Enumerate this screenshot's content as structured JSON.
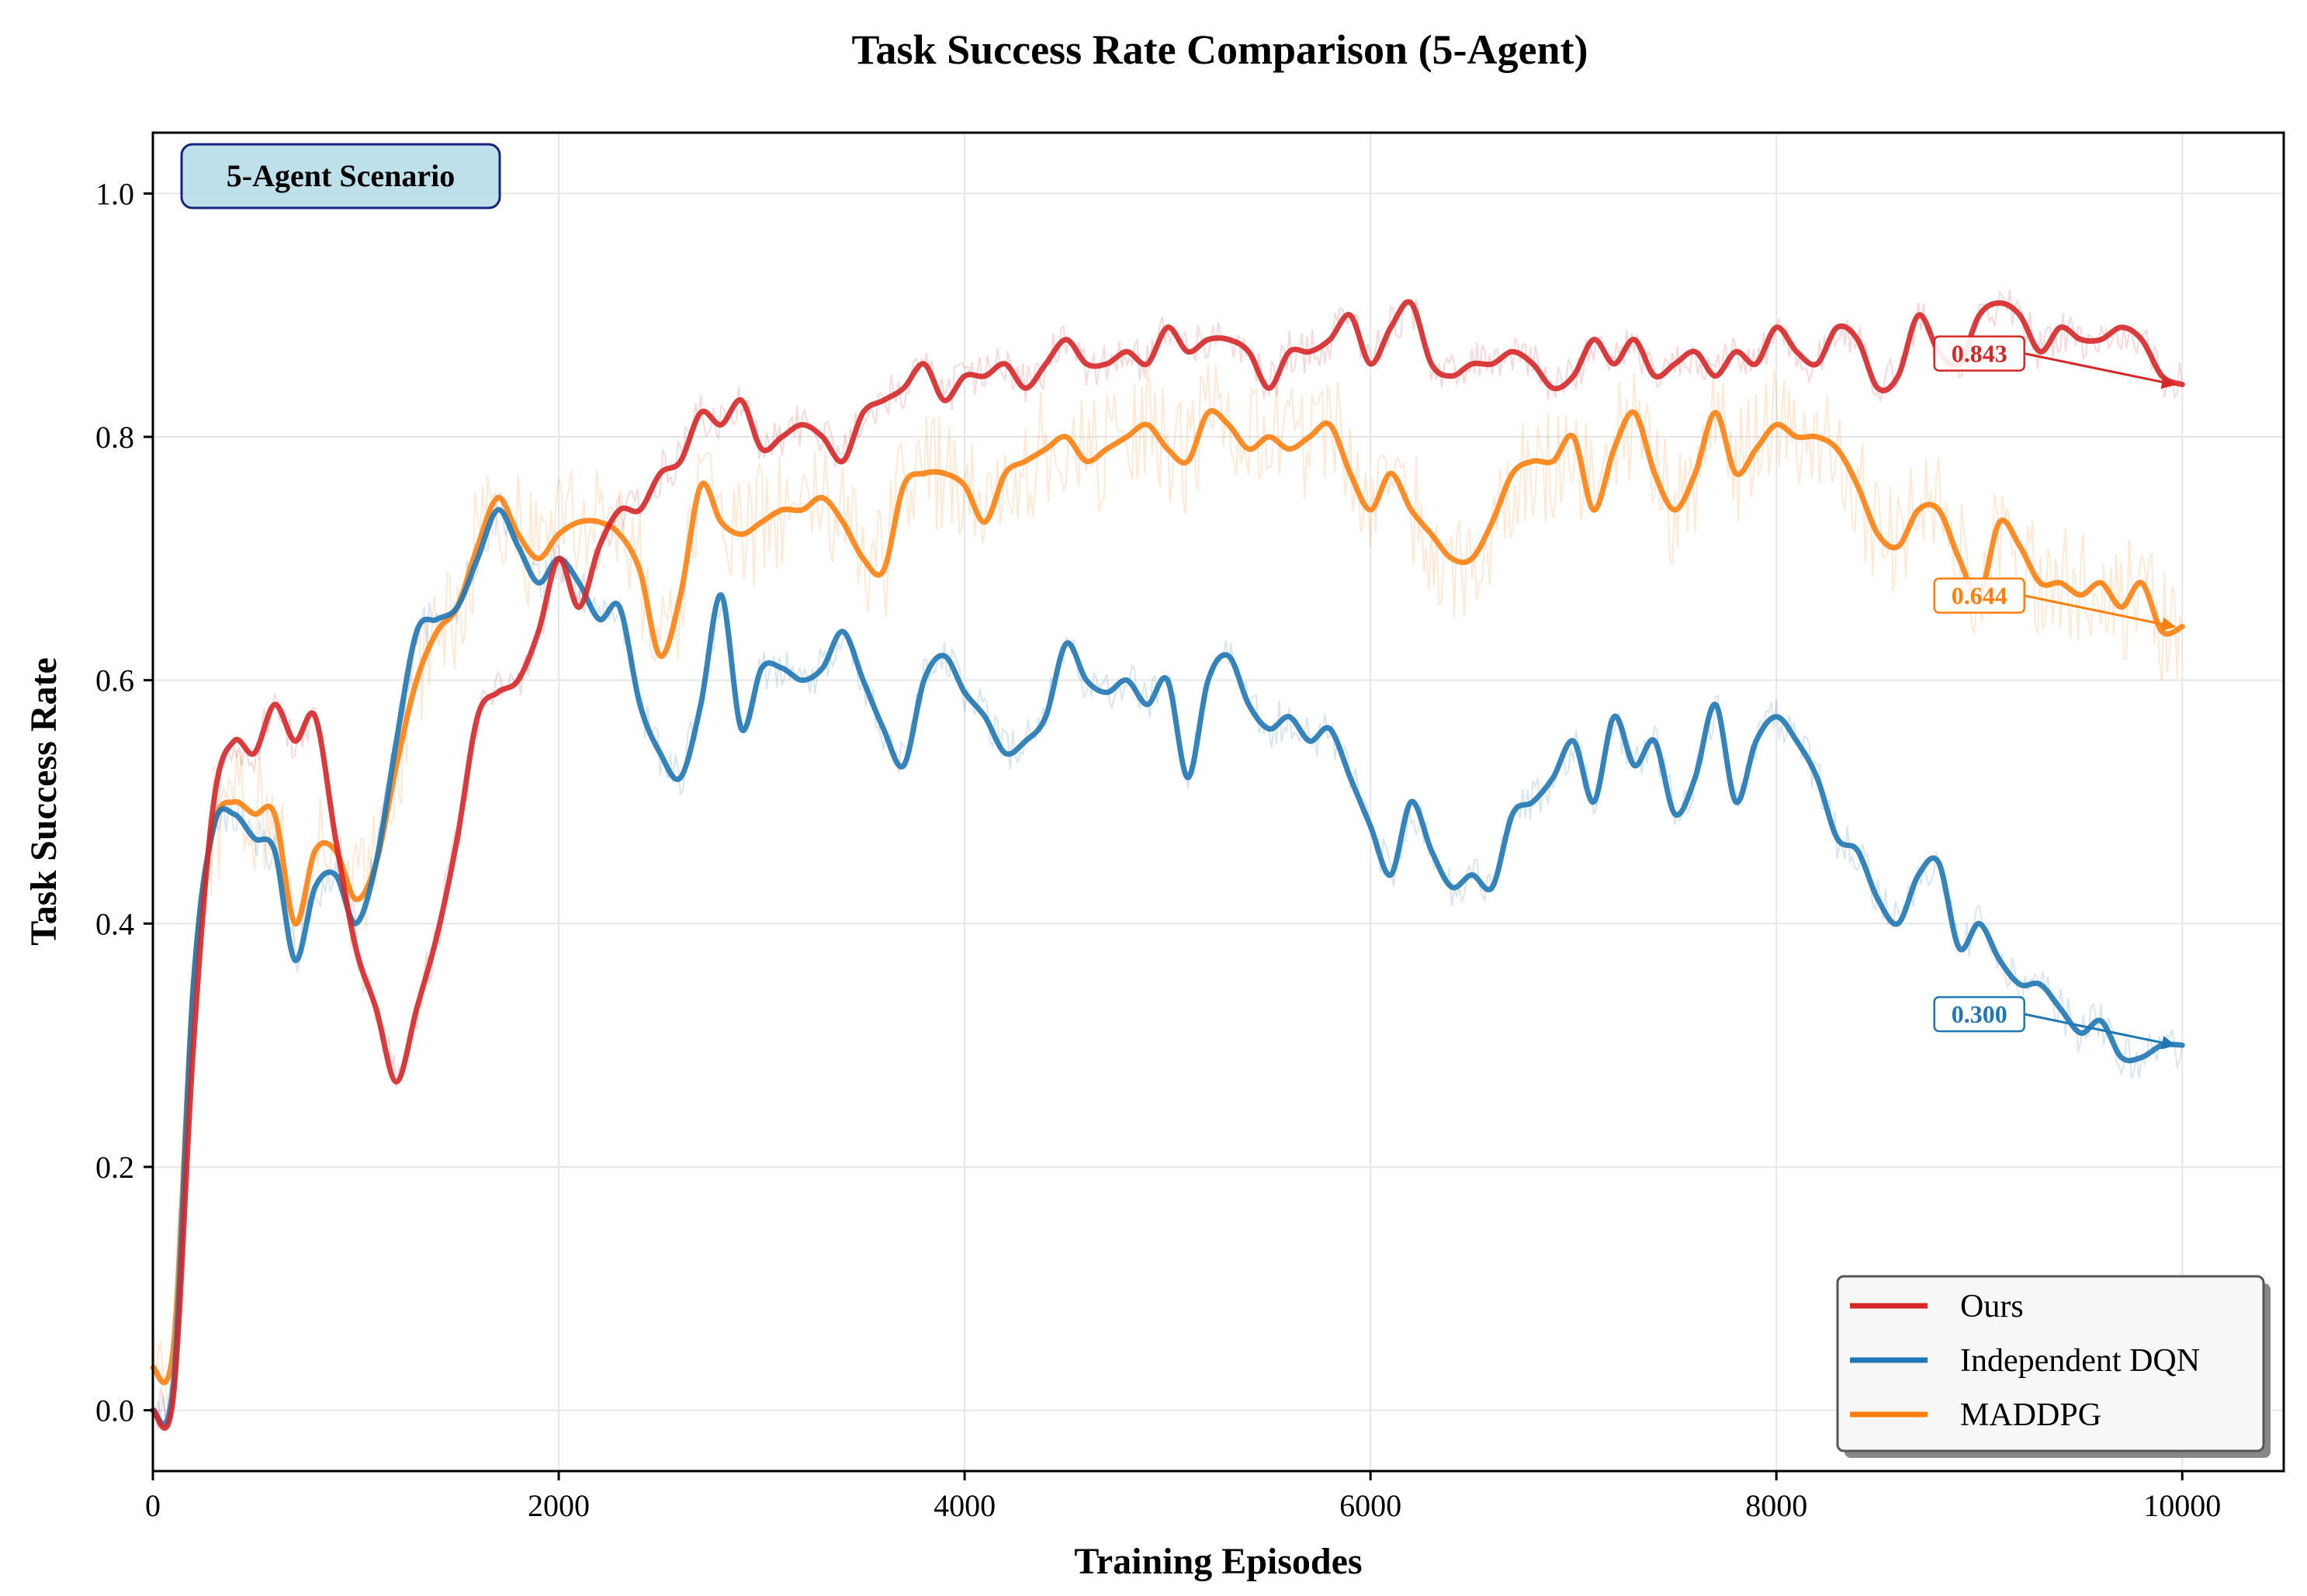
{
  "chart_data": {
    "type": "line",
    "title": "Task Success Rate Comparison (5-Agent)",
    "xlabel": "Training Episodes",
    "ylabel": "Task Success Rate",
    "xlim": [
      0,
      10500
    ],
    "ylim": [
      -0.05,
      1.05
    ],
    "xticks": [
      0,
      2000,
      4000,
      6000,
      8000,
      10000
    ],
    "xtick_labels": [
      "0",
      "2000",
      "4000",
      "6000",
      "8000",
      "10000"
    ],
    "yticks": [
      0.0,
      0.2,
      0.4,
      0.6,
      0.8,
      1.0
    ],
    "ytick_labels": [
      "0.0",
      "0.2",
      "0.4",
      "0.6",
      "0.8",
      "1.0"
    ],
    "grid": true,
    "annotation_box": "5-Agent Scenario",
    "legend_location": "lower-right",
    "series": [
      {
        "name": "Ours",
        "color": "#d62728",
        "final_label": "0.843",
        "final_value": 0.843,
        "x": [
          0,
          100,
          200,
          300,
          400,
          500,
          600,
          700,
          800,
          900,
          1000,
          1100,
          1200,
          1300,
          1400,
          1500,
          1600,
          1700,
          1800,
          1900,
          2000,
          2100,
          2200,
          2300,
          2400,
          2500,
          2600,
          2700,
          2800,
          2900,
          3000,
          3100,
          3200,
          3300,
          3400,
          3500,
          3600,
          3700,
          3800,
          3900,
          4000,
          4100,
          4200,
          4300,
          4400,
          4500,
          4600,
          4700,
          4800,
          4900,
          5000,
          5100,
          5200,
          5300,
          5400,
          5500,
          5600,
          5700,
          5800,
          5900,
          6000,
          6100,
          6200,
          6300,
          6400,
          6500,
          6600,
          6700,
          6800,
          6900,
          7000,
          7100,
          7200,
          7300,
          7400,
          7500,
          7600,
          7700,
          7800,
          7900,
          8000,
          8100,
          8200,
          8300,
          8400,
          8500,
          8600,
          8700,
          8800,
          8900,
          9000,
          9100,
          9200,
          9300,
          9400,
          9500,
          9600,
          9700,
          9800,
          9900,
          10000
        ],
        "y": [
          0.0,
          0.01,
          0.3,
          0.5,
          0.55,
          0.54,
          0.58,
          0.55,
          0.57,
          0.47,
          0.38,
          0.33,
          0.27,
          0.33,
          0.39,
          0.47,
          0.57,
          0.59,
          0.6,
          0.64,
          0.7,
          0.66,
          0.71,
          0.74,
          0.74,
          0.77,
          0.78,
          0.82,
          0.81,
          0.83,
          0.79,
          0.8,
          0.81,
          0.8,
          0.78,
          0.82,
          0.83,
          0.84,
          0.86,
          0.83,
          0.85,
          0.85,
          0.86,
          0.84,
          0.86,
          0.88,
          0.86,
          0.86,
          0.87,
          0.86,
          0.89,
          0.87,
          0.88,
          0.88,
          0.87,
          0.84,
          0.87,
          0.87,
          0.88,
          0.9,
          0.86,
          0.89,
          0.91,
          0.86,
          0.85,
          0.86,
          0.86,
          0.87,
          0.86,
          0.84,
          0.85,
          0.88,
          0.86,
          0.88,
          0.85,
          0.86,
          0.87,
          0.85,
          0.87,
          0.86,
          0.89,
          0.87,
          0.86,
          0.89,
          0.88,
          0.84,
          0.85,
          0.9,
          0.87,
          0.86,
          0.9,
          0.91,
          0.9,
          0.87,
          0.89,
          0.88,
          0.88,
          0.89,
          0.88,
          0.85,
          0.843
        ]
      },
      {
        "name": "Independent DQN",
        "color": "#1f77b4",
        "final_label": "0.300",
        "final_value": 0.3,
        "x": [
          0,
          100,
          200,
          300,
          400,
          500,
          600,
          700,
          800,
          900,
          1000,
          1100,
          1200,
          1300,
          1400,
          1500,
          1600,
          1700,
          1800,
          1900,
          2000,
          2100,
          2200,
          2300,
          2400,
          2500,
          2600,
          2700,
          2800,
          2900,
          3000,
          3100,
          3200,
          3300,
          3400,
          3500,
          3600,
          3700,
          3800,
          3900,
          4000,
          4100,
          4200,
          4300,
          4400,
          4500,
          4600,
          4700,
          4800,
          4900,
          5000,
          5100,
          5200,
          5300,
          5400,
          5500,
          5600,
          5700,
          5800,
          5900,
          6000,
          6100,
          6200,
          6300,
          6400,
          6500,
          6600,
          6700,
          6800,
          6900,
          7000,
          7100,
          7200,
          7300,
          7400,
          7500,
          7600,
          7700,
          7800,
          7900,
          8000,
          8100,
          8200,
          8300,
          8400,
          8500,
          8600,
          8700,
          8800,
          8900,
          9000,
          9100,
          9200,
          9300,
          9400,
          9500,
          9600,
          9700,
          9800,
          9900,
          10000
        ],
        "y": [
          0.0,
          0.02,
          0.35,
          0.48,
          0.49,
          0.47,
          0.46,
          0.37,
          0.43,
          0.44,
          0.4,
          0.45,
          0.55,
          0.64,
          0.65,
          0.66,
          0.7,
          0.74,
          0.71,
          0.68,
          0.7,
          0.68,
          0.65,
          0.66,
          0.58,
          0.54,
          0.52,
          0.58,
          0.67,
          0.56,
          0.61,
          0.61,
          0.6,
          0.61,
          0.64,
          0.6,
          0.56,
          0.53,
          0.6,
          0.62,
          0.59,
          0.57,
          0.54,
          0.55,
          0.57,
          0.63,
          0.6,
          0.59,
          0.6,
          0.58,
          0.6,
          0.52,
          0.6,
          0.62,
          0.58,
          0.56,
          0.57,
          0.55,
          0.56,
          0.52,
          0.48,
          0.44,
          0.5,
          0.46,
          0.43,
          0.44,
          0.43,
          0.49,
          0.5,
          0.52,
          0.55,
          0.5,
          0.57,
          0.53,
          0.55,
          0.49,
          0.52,
          0.58,
          0.5,
          0.55,
          0.57,
          0.55,
          0.52,
          0.47,
          0.46,
          0.42,
          0.4,
          0.44,
          0.45,
          0.38,
          0.4,
          0.37,
          0.35,
          0.35,
          0.33,
          0.31,
          0.32,
          0.29,
          0.29,
          0.3,
          0.3
        ]
      },
      {
        "name": "MADDPG",
        "color": "#ff7f0e",
        "final_label": "0.644",
        "final_value": 0.644,
        "x": [
          0,
          100,
          200,
          300,
          400,
          500,
          600,
          700,
          800,
          900,
          1000,
          1100,
          1200,
          1300,
          1400,
          1500,
          1600,
          1700,
          1800,
          1900,
          2000,
          2100,
          2200,
          2300,
          2400,
          2500,
          2600,
          2700,
          2800,
          2900,
          3000,
          3100,
          3200,
          3300,
          3400,
          3500,
          3600,
          3700,
          3800,
          3900,
          4000,
          4100,
          4200,
          4300,
          4400,
          4500,
          4600,
          4700,
          4800,
          4900,
          5000,
          5100,
          5200,
          5300,
          5400,
          5500,
          5600,
          5700,
          5800,
          5900,
          6000,
          6100,
          6200,
          6300,
          6400,
          6500,
          6600,
          6700,
          6800,
          6900,
          7000,
          7100,
          7200,
          7300,
          7400,
          7500,
          7600,
          7700,
          7800,
          7900,
          8000,
          8100,
          8200,
          8300,
          8400,
          8500,
          8600,
          8700,
          8800,
          8900,
          9000,
          9100,
          9200,
          9300,
          9400,
          9500,
          9600,
          9700,
          9800,
          9900,
          10000
        ],
        "y": [
          0.035,
          0.05,
          0.35,
          0.48,
          0.5,
          0.49,
          0.49,
          0.4,
          0.46,
          0.46,
          0.42,
          0.45,
          0.53,
          0.6,
          0.64,
          0.66,
          0.71,
          0.75,
          0.72,
          0.7,
          0.72,
          0.73,
          0.73,
          0.72,
          0.69,
          0.62,
          0.67,
          0.76,
          0.73,
          0.72,
          0.73,
          0.74,
          0.74,
          0.75,
          0.73,
          0.7,
          0.69,
          0.76,
          0.77,
          0.77,
          0.76,
          0.73,
          0.77,
          0.78,
          0.79,
          0.8,
          0.78,
          0.79,
          0.8,
          0.81,
          0.79,
          0.78,
          0.82,
          0.81,
          0.79,
          0.8,
          0.79,
          0.8,
          0.81,
          0.77,
          0.74,
          0.77,
          0.74,
          0.72,
          0.7,
          0.7,
          0.73,
          0.77,
          0.78,
          0.78,
          0.8,
          0.74,
          0.79,
          0.82,
          0.77,
          0.74,
          0.77,
          0.82,
          0.77,
          0.79,
          0.81,
          0.8,
          0.8,
          0.79,
          0.76,
          0.72,
          0.71,
          0.74,
          0.74,
          0.7,
          0.67,
          0.73,
          0.71,
          0.68,
          0.68,
          0.67,
          0.68,
          0.66,
          0.68,
          0.64,
          0.644
        ]
      }
    ]
  }
}
